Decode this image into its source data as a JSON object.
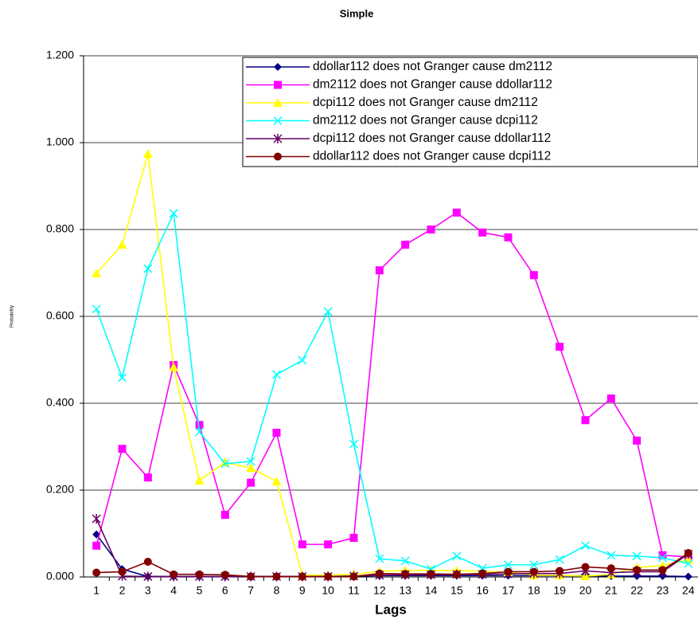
{
  "chart_data": {
    "type": "line",
    "title": "Simple",
    "x_label": "Lags",
    "y_label": "Probability",
    "categories": [
      "1",
      "2",
      "3",
      "4",
      "5",
      "6",
      "7",
      "8",
      "9",
      "10",
      "11",
      "12",
      "13",
      "14",
      "15",
      "16",
      "17",
      "18",
      "19",
      "20",
      "21",
      "22",
      "23",
      "24"
    ],
    "ylim": [
      0,
      1.2
    ],
    "yticks": [
      {
        "value": 0,
        "label": "0.000"
      },
      {
        "value": 0.2,
        "label": "0.200"
      },
      {
        "value": 0.4,
        "label": "0.400"
      },
      {
        "value": 0.6,
        "label": "0.600"
      },
      {
        "value": 0.8,
        "label": "0.800"
      },
      {
        "value": 1.0,
        "label": "1.000"
      },
      {
        "value": 1.2,
        "label": "1.200"
      }
    ],
    "grid": true,
    "legend": "upper right",
    "series": [
      {
        "name": "ddollar112 does not Granger cause dm2112",
        "color": "#000080",
        "marker": "diamond",
        "values": [
          0.098,
          0.018,
          0.001,
          0.001,
          0.001,
          0.001,
          0.001,
          0.001,
          0.001,
          0.001,
          0.002,
          0.003,
          0.003,
          0.003,
          0.003,
          0.003,
          0.003,
          0.003,
          0.003,
          0.003,
          0.002,
          0.002,
          0.002,
          0.001
        ]
      },
      {
        "name": "dm2112 does not Granger cause ddollar112",
        "color": "#ff00ff",
        "marker": "square",
        "values": [
          0.072,
          0.295,
          0.229,
          0.488,
          0.35,
          0.143,
          0.217,
          0.332,
          0.075,
          0.075,
          0.09,
          0.706,
          0.765,
          0.8,
          0.839,
          0.793,
          0.782,
          0.695,
          0.53,
          0.361,
          0.411,
          0.314,
          0.05,
          0.046
        ]
      },
      {
        "name": "dcpi112 does not Granger cause dm2112",
        "color": "#ffff00",
        "marker": "triangle",
        "values": [
          0.699,
          0.765,
          0.974,
          0.483,
          0.222,
          0.264,
          0.251,
          0.22,
          0.004,
          0.004,
          0.006,
          0.013,
          0.015,
          0.015,
          0.015,
          0.013,
          0.011,
          0.004,
          0.004,
          0.002,
          0.006,
          0.022,
          0.026,
          0.04
        ]
      },
      {
        "name": "dm2112 does not Granger cause dcpi112",
        "color": "#00ffff",
        "marker": "x",
        "values": [
          0.617,
          0.459,
          0.71,
          0.837,
          0.334,
          0.261,
          0.266,
          0.466,
          0.499,
          0.611,
          0.306,
          0.042,
          0.037,
          0.018,
          0.048,
          0.02,
          0.028,
          0.028,
          0.04,
          0.072,
          0.05,
          0.048,
          0.044,
          0.031
        ]
      },
      {
        "name": "dcpi112 does not Granger cause ddollar112",
        "color": "#660066",
        "marker": "star",
        "values": [
          0.134,
          0.002,
          0.001,
          0.001,
          0.001,
          0.001,
          0.001,
          0.001,
          0.001,
          0.001,
          0.002,
          0.004,
          0.005,
          0.005,
          0.006,
          0.006,
          0.007,
          0.008,
          0.008,
          0.014,
          0.01,
          0.012,
          0.012,
          0.053
        ]
      },
      {
        "name": "ddollar112 does not Granger cause dcpi112",
        "color": "#800000",
        "marker": "circle",
        "values": [
          0.01,
          0.012,
          0.035,
          0.006,
          0.006,
          0.005,
          0.001,
          0.001,
          0.001,
          0.001,
          0.001,
          0.008,
          0.007,
          0.007,
          0.006,
          0.008,
          0.012,
          0.012,
          0.014,
          0.023,
          0.02,
          0.016,
          0.016,
          0.055
        ]
      }
    ]
  }
}
